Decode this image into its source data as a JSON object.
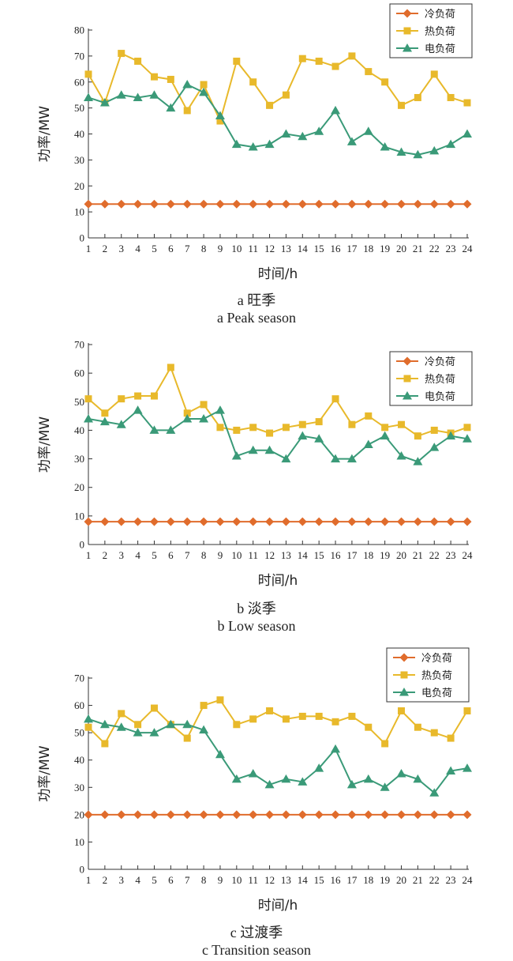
{
  "colors": {
    "cold": "#e06c2c",
    "heat": "#e8b92b",
    "elec": "#3a9a78"
  },
  "chart_data": [
    {
      "type": "line",
      "caption_zh": "a  旺季",
      "caption_en": "a  Peak season",
      "xlabel": "时间/h",
      "ylabel": "功率/MW",
      "ylim": [
        0,
        80
      ],
      "yticks": [
        0,
        10,
        20,
        30,
        40,
        50,
        60,
        70,
        80
      ],
      "legend_position": "top-right",
      "x": [
        1,
        2,
        3,
        4,
        5,
        6,
        7,
        8,
        9,
        10,
        11,
        12,
        13,
        14,
        15,
        16,
        17,
        18,
        19,
        20,
        21,
        22,
        23,
        24
      ],
      "series": [
        {
          "name": "冷负荷",
          "marker": "diamond",
          "values": [
            13,
            13,
            13,
            13,
            13,
            13,
            13,
            13,
            13,
            13,
            13,
            13,
            13,
            13,
            13,
            13,
            13,
            13,
            13,
            13,
            13,
            13,
            13,
            13
          ]
        },
        {
          "name": "热负荷",
          "marker": "square",
          "values": [
            63,
            52,
            71,
            68,
            62,
            61,
            49,
            59,
            45,
            68,
            60,
            51,
            55,
            69,
            68,
            66,
            70,
            64,
            60,
            51,
            54,
            63,
            54,
            52
          ]
        },
        {
          "name": "电负荷",
          "marker": "triangle",
          "values": [
            54,
            52,
            55,
            54,
            55,
            50,
            59,
            56,
            47,
            36,
            35,
            36,
            40,
            39,
            41,
            49,
            37,
            41,
            35,
            33,
            32,
            33.5,
            36,
            40
          ]
        }
      ]
    },
    {
      "type": "line",
      "caption_zh": "b  淡季",
      "caption_en": "b  Low season",
      "xlabel": "时间/h",
      "ylabel": "功率/MW",
      "ylim": [
        0,
        70
      ],
      "yticks": [
        0,
        10,
        20,
        30,
        40,
        50,
        60,
        70
      ],
      "legend_position": "top-right",
      "x": [
        1,
        2,
        3,
        4,
        5,
        6,
        7,
        8,
        9,
        10,
        11,
        12,
        13,
        14,
        15,
        16,
        17,
        18,
        19,
        20,
        21,
        22,
        23,
        24
      ],
      "series": [
        {
          "name": "冷负荷",
          "marker": "diamond",
          "values": [
            8,
            8,
            8,
            8,
            8,
            8,
            8,
            8,
            8,
            8,
            8,
            8,
            8,
            8,
            8,
            8,
            8,
            8,
            8,
            8,
            8,
            8,
            8,
            8
          ]
        },
        {
          "name": "热负荷",
          "marker": "square",
          "values": [
            51,
            46,
            51,
            52,
            52,
            62,
            46,
            49,
            41,
            40,
            41,
            39,
            41,
            42,
            43,
            51,
            42,
            45,
            41,
            42,
            38,
            40,
            39,
            41
          ]
        },
        {
          "name": "电负荷",
          "marker": "triangle",
          "values": [
            44,
            43,
            42,
            47,
            40,
            40,
            44,
            44,
            47,
            31,
            33,
            33,
            30,
            38,
            37,
            30,
            30,
            35,
            38,
            31,
            29,
            34,
            38,
            37
          ]
        }
      ]
    },
    {
      "type": "line",
      "caption_zh": "c  过渡季",
      "caption_en": "c  Transition  season",
      "xlabel": "时间/h",
      "ylabel": "功率/MW",
      "ylim": [
        0,
        70
      ],
      "yticks": [
        0,
        10,
        20,
        30,
        40,
        50,
        60,
        70
      ],
      "legend_position": "top-right",
      "x": [
        1,
        2,
        3,
        4,
        5,
        6,
        7,
        8,
        9,
        10,
        11,
        12,
        13,
        14,
        15,
        16,
        17,
        18,
        19,
        20,
        21,
        22,
        23,
        24
      ],
      "series": [
        {
          "name": "冷负荷",
          "marker": "diamond",
          "values": [
            20,
            20,
            20,
            20,
            20,
            20,
            20,
            20,
            20,
            20,
            20,
            20,
            20,
            20,
            20,
            20,
            20,
            20,
            20,
            20,
            20,
            20,
            20,
            20
          ]
        },
        {
          "name": "热负荷",
          "marker": "square",
          "values": [
            52,
            46,
            57,
            53,
            59,
            53,
            48,
            60,
            62,
            53,
            55,
            58,
            55,
            56,
            56,
            54,
            56,
            52,
            46,
            58,
            52,
            50,
            48,
            58
          ]
        },
        {
          "name": "电负荷",
          "marker": "triangle",
          "values": [
            55,
            53,
            52,
            50,
            50,
            53,
            53,
            51,
            42,
            33,
            35,
            31,
            33,
            32,
            37,
            44,
            31,
            33,
            30,
            35,
            33,
            28,
            36,
            37
          ]
        }
      ]
    }
  ]
}
